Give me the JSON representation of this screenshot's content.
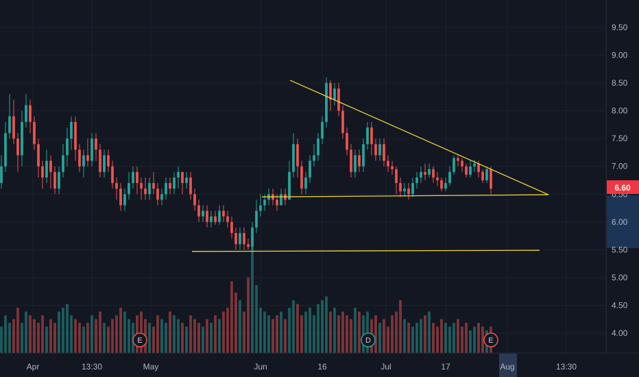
{
  "chart_data": {
    "type": "candlestick",
    "title": "",
    "ylim": [
      3.6,
      9.9
    ],
    "y_ticks": [
      "4.00",
      "4.50",
      "5.00",
      "5.50",
      "6.00",
      "6.50",
      "7.00",
      "7.50",
      "8.00",
      "8.50",
      "9.00",
      "9.50"
    ],
    "x_ticks": [
      "Apr",
      "13:30",
      "May",
      "Jun",
      "16",
      "Jul",
      "17",
      "Aug",
      "13:30"
    ],
    "highlighted_x_tick": "Aug",
    "current_price": "6.60",
    "colors": {
      "up": "#26a69a",
      "down": "#ef5350",
      "trendline": "#f0d43a",
      "price_label": "#f23645",
      "background": "#131722"
    },
    "event_markers": [
      "E",
      "D",
      "E"
    ],
    "candles": [
      [
        6.7,
        7.0,
        7.2,
        6.6
      ],
      [
        7.0,
        7.6,
        7.8,
        6.9
      ],
      [
        7.6,
        7.9,
        8.3,
        7.5
      ],
      [
        7.9,
        7.5,
        8.2,
        7.4
      ],
      [
        7.5,
        7.2,
        7.6,
        6.9
      ],
      [
        7.2,
        7.8,
        8.0,
        7.0
      ],
      [
        7.8,
        8.1,
        8.3,
        7.7
      ],
      [
        8.1,
        7.8,
        8.2,
        7.6
      ],
      [
        7.8,
        7.4,
        7.9,
        7.3
      ],
      [
        7.4,
        7.0,
        7.5,
        6.8
      ],
      [
        7.0,
        6.8,
        7.1,
        6.6
      ],
      [
        6.8,
        7.1,
        7.3,
        6.7
      ],
      [
        7.1,
        6.9,
        7.2,
        6.6
      ],
      [
        6.9,
        6.6,
        7.0,
        6.5
      ],
      [
        6.6,
        6.9,
        7.0,
        6.5
      ],
      [
        6.9,
        7.2,
        7.4,
        6.8
      ],
      [
        7.2,
        7.5,
        7.7,
        7.0
      ],
      [
        7.5,
        7.8,
        7.9,
        7.3
      ],
      [
        7.8,
        7.3,
        7.9,
        7.1
      ],
      [
        7.3,
        7.0,
        7.4,
        6.9
      ],
      [
        7.0,
        7.2,
        7.3,
        6.8
      ],
      [
        7.2,
        7.1,
        7.5,
        7.0
      ],
      [
        7.1,
        7.5,
        7.6,
        7.0
      ],
      [
        7.5,
        7.3,
        7.6,
        7.1
      ],
      [
        7.3,
        6.9,
        7.4,
        6.8
      ],
      [
        6.9,
        7.2,
        7.3,
        6.8
      ],
      [
        7.2,
        7.0,
        7.3,
        6.9
      ],
      [
        7.0,
        6.7,
        7.1,
        6.6
      ],
      [
        6.7,
        6.6,
        6.8,
        6.4
      ],
      [
        6.6,
        6.3,
        6.7,
        6.2
      ],
      [
        6.3,
        6.5,
        6.6,
        6.2
      ],
      [
        6.5,
        6.7,
        6.9,
        6.4
      ],
      [
        6.7,
        6.9,
        7.0,
        6.6
      ],
      [
        6.9,
        6.7,
        7.0,
        6.5
      ],
      [
        6.7,
        6.6,
        6.8,
        6.4
      ],
      [
        6.6,
        6.5,
        6.8,
        6.4
      ],
      [
        6.5,
        6.7,
        6.8,
        6.4
      ],
      [
        6.7,
        6.6,
        6.9,
        6.5
      ],
      [
        6.6,
        6.4,
        6.7,
        6.3
      ],
      [
        6.4,
        6.5,
        6.6,
        6.3
      ],
      [
        6.5,
        6.7,
        6.8,
        6.4
      ],
      [
        6.7,
        6.6,
        6.8,
        6.5
      ],
      [
        6.6,
        6.8,
        6.9,
        6.5
      ],
      [
        6.8,
        6.9,
        7.0,
        6.6
      ],
      [
        6.9,
        6.7,
        6.9,
        6.5
      ],
      [
        6.7,
        6.8,
        6.9,
        6.6
      ],
      [
        6.8,
        6.5,
        6.9,
        6.4
      ],
      [
        6.5,
        6.3,
        6.6,
        6.2
      ],
      [
        6.3,
        6.1,
        6.4,
        6.0
      ],
      [
        6.1,
        6.2,
        6.3,
        6.0
      ],
      [
        6.2,
        6.0,
        6.3,
        5.9
      ],
      [
        6.0,
        6.1,
        6.2,
        5.9
      ],
      [
        6.1,
        6.0,
        6.2,
        5.95
      ],
      [
        6.0,
        6.2,
        6.3,
        5.95
      ],
      [
        6.2,
        6.1,
        6.3,
        6.0
      ],
      [
        6.1,
        6.0,
        6.2,
        5.9
      ],
      [
        6.0,
        5.8,
        6.1,
        5.7
      ],
      [
        5.8,
        5.6,
        5.9,
        5.5
      ],
      [
        5.6,
        5.8,
        5.9,
        5.5
      ],
      [
        5.8,
        5.6,
        5.9,
        5.5
      ],
      [
        5.6,
        5.55,
        5.7,
        5.5
      ],
      [
        5.55,
        5.9,
        6.0,
        5.5
      ],
      [
        5.9,
        6.2,
        6.4,
        5.8
      ],
      [
        6.2,
        6.3,
        6.5,
        6.1
      ],
      [
        6.3,
        6.4,
        6.5,
        6.2
      ],
      [
        6.4,
        6.5,
        6.6,
        6.3
      ],
      [
        6.5,
        6.4,
        6.6,
        6.3
      ],
      [
        6.4,
        6.3,
        6.5,
        6.2
      ],
      [
        6.3,
        6.5,
        6.6,
        6.3
      ],
      [
        6.5,
        6.4,
        6.6,
        6.3
      ],
      [
        6.4,
        6.9,
        7.1,
        6.4
      ],
      [
        6.9,
        7.4,
        7.6,
        6.8
      ],
      [
        7.4,
        7.0,
        7.5,
        6.8
      ],
      [
        7.0,
        6.6,
        7.1,
        6.5
      ],
      [
        6.6,
        6.8,
        6.9,
        6.5
      ],
      [
        6.8,
        7.1,
        7.2,
        6.7
      ],
      [
        7.1,
        7.2,
        7.4,
        7.0
      ],
      [
        7.2,
        7.5,
        7.6,
        7.1
      ],
      [
        7.5,
        7.8,
        7.9,
        7.4
      ],
      [
        7.8,
        8.5,
        8.6,
        7.7
      ],
      [
        8.5,
        8.2,
        8.55,
        8.0
      ],
      [
        8.2,
        8.4,
        8.5,
        8.1
      ],
      [
        8.4,
        8.0,
        8.5,
        7.9
      ],
      [
        8.0,
        7.6,
        8.1,
        7.5
      ],
      [
        7.6,
        7.3,
        7.7,
        7.2
      ],
      [
        7.3,
        6.9,
        7.4,
        6.8
      ],
      [
        6.9,
        7.2,
        7.3,
        6.8
      ],
      [
        7.2,
        7.0,
        7.3,
        6.9
      ],
      [
        7.0,
        7.4,
        7.5,
        6.9
      ],
      [
        7.4,
        7.7,
        7.8,
        7.3
      ],
      [
        7.7,
        7.4,
        7.8,
        7.2
      ],
      [
        7.4,
        7.2,
        7.5,
        7.1
      ],
      [
        7.2,
        7.4,
        7.5,
        7.1
      ],
      [
        7.4,
        7.1,
        7.5,
        7.0
      ],
      [
        7.1,
        7.0,
        7.2,
        6.9
      ],
      [
        7.0,
        6.95,
        7.1,
        6.85
      ],
      [
        6.95,
        6.7,
        7.0,
        6.5
      ],
      [
        6.7,
        6.55,
        6.8,
        6.45
      ],
      [
        6.55,
        6.6,
        6.7,
        6.45
      ],
      [
        6.6,
        6.5,
        6.7,
        6.4
      ],
      [
        6.5,
        6.7,
        6.8,
        6.45
      ],
      [
        6.7,
        6.8,
        6.9,
        6.6
      ],
      [
        6.8,
        6.9,
        7.0,
        6.7
      ],
      [
        6.9,
        6.85,
        7.05,
        6.75
      ],
      [
        6.85,
        6.95,
        7.05,
        6.8
      ],
      [
        6.95,
        6.8,
        7.0,
        6.7
      ],
      [
        6.8,
        6.75,
        6.9,
        6.65
      ],
      [
        6.75,
        6.6,
        6.8,
        6.55
      ],
      [
        6.6,
        6.7,
        6.8,
        6.55
      ],
      [
        6.7,
        6.9,
        7.0,
        6.65
      ],
      [
        6.9,
        7.15,
        7.2,
        6.85
      ],
      [
        7.15,
        7.1,
        7.2,
        7.0
      ],
      [
        7.1,
        7.0,
        7.15,
        6.9
      ],
      [
        7.0,
        6.85,
        7.05,
        6.8
      ],
      [
        6.85,
        7.0,
        7.1,
        6.8
      ],
      [
        7.0,
        7.05,
        7.12,
        6.9
      ],
      [
        7.05,
        6.9,
        7.1,
        6.8
      ],
      [
        6.9,
        6.75,
        6.95,
        6.7
      ],
      [
        6.75,
        6.95,
        7.0,
        6.7
      ],
      [
        6.95,
        6.6,
        7.0,
        6.5
      ]
    ],
    "volumes": [
      0.35,
      0.5,
      0.4,
      0.45,
      0.6,
      0.4,
      0.55,
      0.5,
      0.45,
      0.4,
      0.5,
      0.35,
      0.45,
      0.4,
      0.55,
      0.6,
      0.65,
      0.5,
      0.45,
      0.4,
      0.35,
      0.4,
      0.5,
      0.45,
      0.55,
      0.4,
      0.35,
      0.45,
      0.5,
      0.6,
      0.55,
      0.45,
      0.4,
      0.5,
      0.55,
      0.45,
      0.4,
      0.35,
      0.5,
      0.45,
      0.4,
      0.55,
      0.5,
      0.45,
      0.4,
      0.35,
      0.5,
      0.45,
      0.4,
      0.35,
      0.45,
      0.4,
      0.5,
      0.45,
      0.55,
      0.6,
      0.95,
      0.8,
      0.7,
      0.55,
      1.0,
      1.4,
      0.9,
      0.6,
      0.55,
      0.5,
      0.45,
      0.5,
      0.55,
      0.45,
      0.6,
      0.7,
      0.65,
      0.5,
      0.55,
      0.6,
      0.5,
      0.65,
      0.7,
      0.75,
      0.55,
      0.6,
      0.5,
      0.55,
      0.5,
      0.45,
      0.6,
      0.55,
      0.5,
      0.55,
      0.45,
      0.5,
      0.4,
      0.45,
      0.35,
      0.5,
      0.55,
      0.7,
      0.45,
      0.4,
      0.35,
      0.4,
      0.45,
      0.5,
      0.55,
      0.4,
      0.35,
      0.45,
      0.4,
      0.35,
      0.4,
      0.45,
      0.35,
      0.4,
      0.3,
      0.35,
      0.4,
      0.35,
      0.3,
      0.35
    ]
  }
}
